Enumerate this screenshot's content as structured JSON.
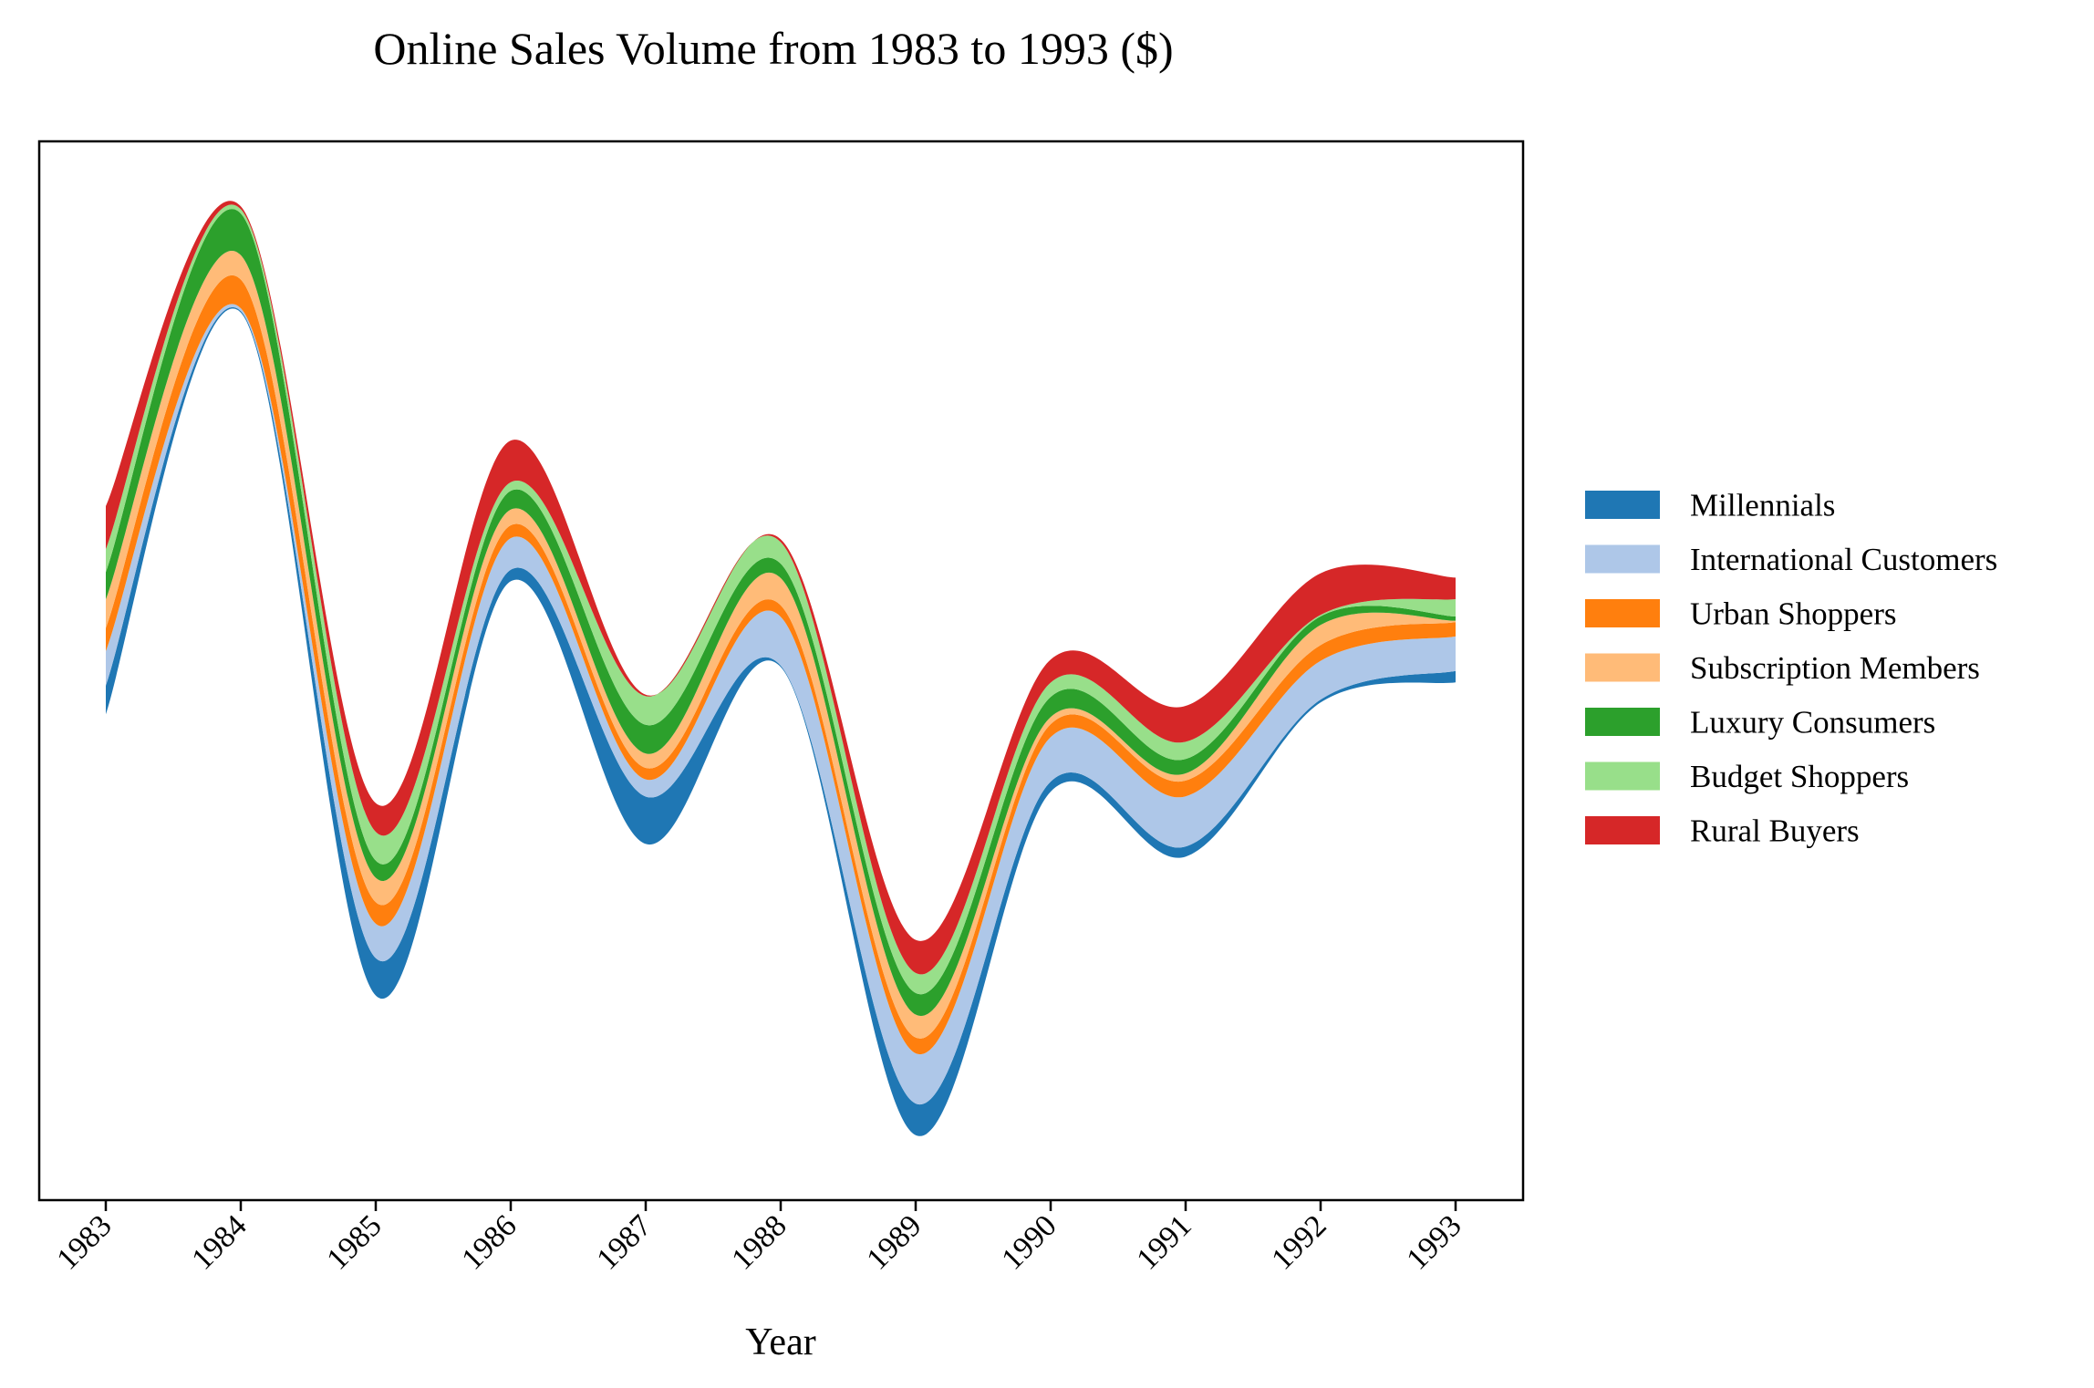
{
  "chart_data": {
    "type": "area",
    "subtype": "streamgraph",
    "title": "Online Sales Volume from 1983 to 1993 ($)",
    "xlabel": "Year",
    "ylabel": "",
    "x": [
      "1983",
      "1984",
      "1985",
      "1986",
      "1987",
      "1988",
      "1989",
      "1990",
      "1991",
      "1992",
      "1993"
    ],
    "x_tick_labels": [
      "1983",
      "1984",
      "1985",
      "1986",
      "1987",
      "1988",
      "1989",
      "1990",
      "1991",
      "1992",
      "1993"
    ],
    "baseline": "wiggle",
    "grid": false,
    "legend_position": "right",
    "series": [
      {
        "name": "Millennials",
        "color": "#1f77b4",
        "values": [
          100,
          5,
          130,
          40,
          165,
          5,
          110,
          35,
          35,
          10,
          40
        ]
      },
      {
        "name": "International Customers",
        "color": "#aec7e8",
        "values": [
          120,
          10,
          120,
          110,
          60,
          170,
          175,
          155,
          175,
          135,
          120
        ]
      },
      {
        "name": "Urban Shoppers",
        "color": "#ff7f0e",
        "values": [
          80,
          100,
          75,
          45,
          40,
          40,
          55,
          45,
          55,
          55,
          50
        ]
      },
      {
        "name": "Subscription Members",
        "color": "#ffbb78",
        "values": [
          100,
          85,
          85,
          55,
          50,
          95,
          80,
          25,
          25,
          70,
          5
        ]
      },
      {
        "name": "Luxury Consumers",
        "color": "#2ca02c",
        "values": [
          95,
          145,
          60,
          65,
          100,
          50,
          75,
          70,
          50,
          30,
          15
        ]
      },
      {
        "name": "Budget Shoppers",
        "color": "#98df8a",
        "values": [
          80,
          15,
          100,
          30,
          100,
          75,
          70,
          50,
          60,
          5,
          60
        ]
      },
      {
        "name": "Rural Buyers",
        "color": "#d62728",
        "values": [
          150,
          10,
          100,
          145,
          5,
          10,
          115,
          80,
          125,
          145,
          75
        ]
      }
    ]
  }
}
